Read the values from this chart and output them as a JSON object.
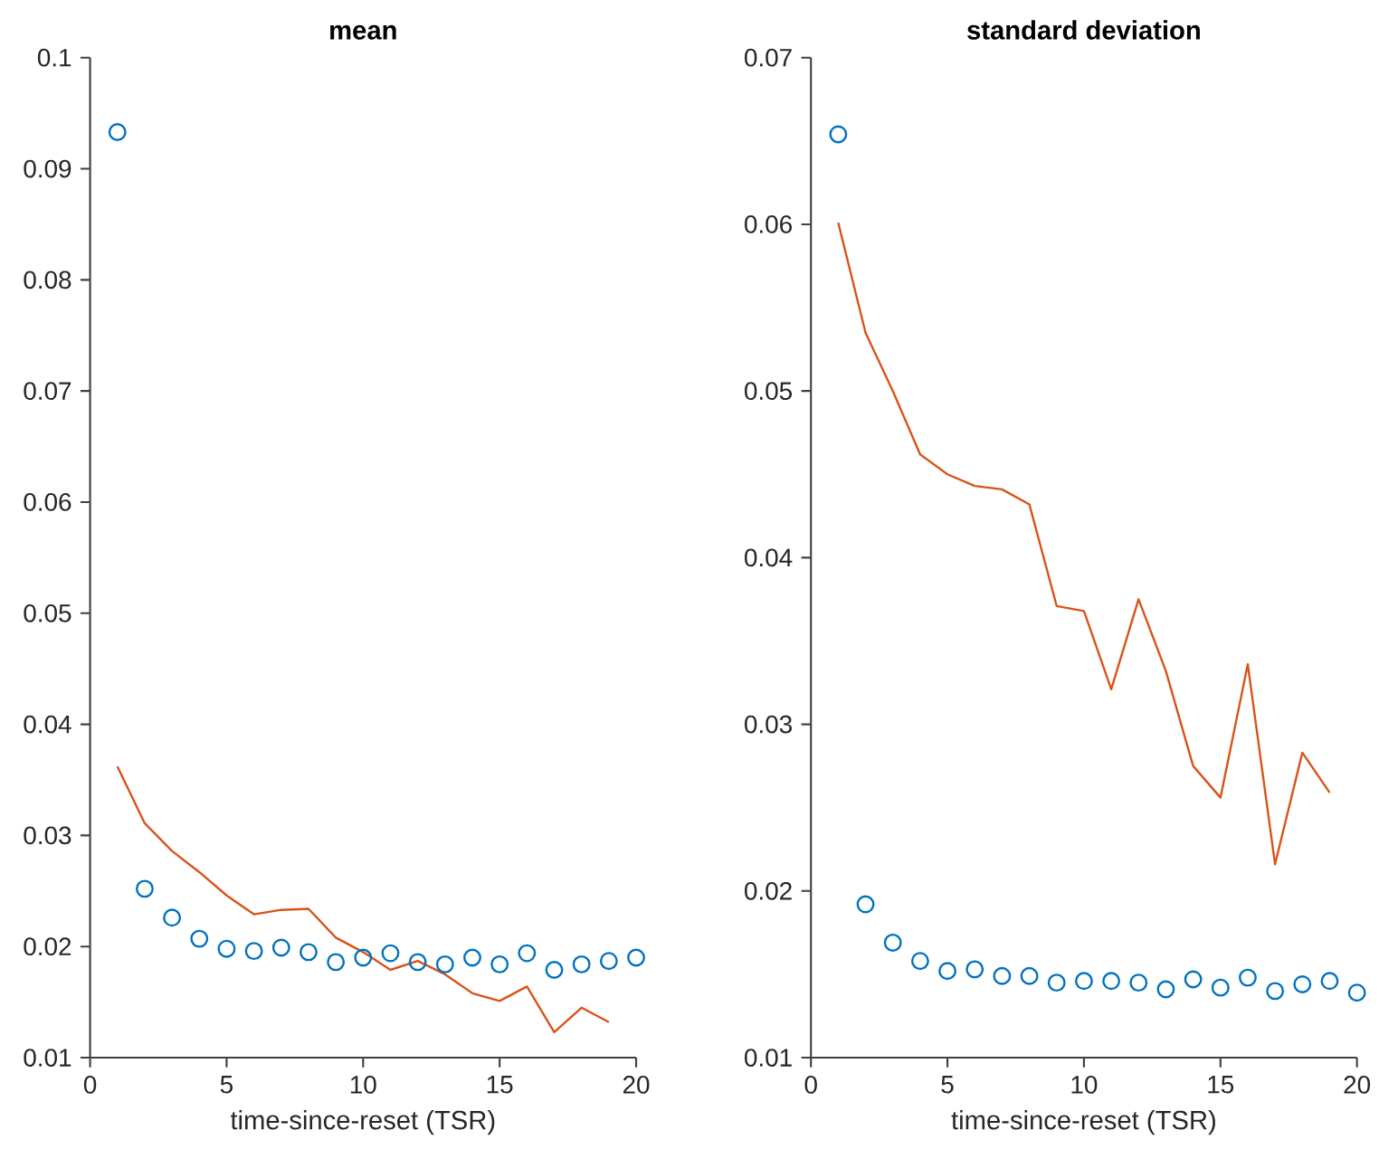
{
  "chart_data": [
    {
      "type": "scatter",
      "title": "mean",
      "xlabel": "time-since-reset (TSR)",
      "x": [
        1,
        2,
        3,
        4,
        5,
        6,
        7,
        8,
        9,
        10,
        11,
        12,
        13,
        14,
        15,
        16,
        17,
        18,
        19,
        20
      ],
      "xlim": [
        0,
        20
      ],
      "xticks": [
        0,
        5,
        10,
        15,
        20
      ],
      "ylim": [
        0.01,
        0.1
      ],
      "yticks": [
        0.01,
        0.02,
        0.03,
        0.04,
        0.05,
        0.06,
        0.07,
        0.08,
        0.09,
        0.1
      ],
      "grid": false,
      "series": [
        {
          "marker": "circle",
          "color": "#0072bd",
          "values": [
            0.0933,
            0.0252,
            0.0226,
            0.0207,
            0.0198,
            0.0196,
            0.0199,
            0.0195,
            0.0186,
            0.019,
            0.0194,
            0.0186,
            0.0184,
            0.019,
            0.0184,
            0.0194,
            0.0179,
            0.0184,
            0.0187,
            0.019
          ]
        },
        {
          "type": "line",
          "marker": "none",
          "color": "#d95319",
          "values": [
            0.0362,
            0.0311,
            0.0286,
            0.0267,
            0.0246,
            0.0229,
            0.0233,
            0.0234,
            0.0208,
            0.0195,
            0.0179,
            0.0187,
            0.0175,
            0.0158,
            0.0151,
            0.0164,
            0.0123,
            0.0145,
            0.0132,
            null
          ]
        }
      ]
    },
    {
      "type": "scatter",
      "title": "standard deviation",
      "xlabel": "time-since-reset (TSR)",
      "x": [
        1,
        2,
        3,
        4,
        5,
        6,
        7,
        8,
        9,
        10,
        11,
        12,
        13,
        14,
        15,
        16,
        17,
        18,
        19,
        20
      ],
      "xlim": [
        0,
        20
      ],
      "xticks": [
        0,
        5,
        10,
        15,
        20
      ],
      "ylim": [
        0.01,
        0.07
      ],
      "yticks": [
        0.01,
        0.02,
        0.03,
        0.04,
        0.05,
        0.06,
        0.07
      ],
      "grid": false,
      "series": [
        {
          "marker": "circle",
          "color": "#0072bd",
          "values": [
            0.0654,
            0.0192,
            0.0169,
            0.0158,
            0.0152,
            0.0153,
            0.0149,
            0.0149,
            0.0145,
            0.0146,
            0.0146,
            0.0145,
            0.0141,
            0.0147,
            0.0142,
            0.0148,
            0.014,
            0.0144,
            0.0146,
            0.0139
          ]
        },
        {
          "type": "line",
          "marker": "none",
          "color": "#d95319",
          "values": [
            0.0601,
            0.0535,
            0.05,
            0.0462,
            0.045,
            0.0443,
            0.0441,
            0.0432,
            0.0371,
            0.0368,
            0.0321,
            0.0375,
            0.0332,
            0.0275,
            0.0256,
            0.0336,
            0.0216,
            0.0283,
            0.0259,
            null
          ]
        }
      ]
    }
  ]
}
